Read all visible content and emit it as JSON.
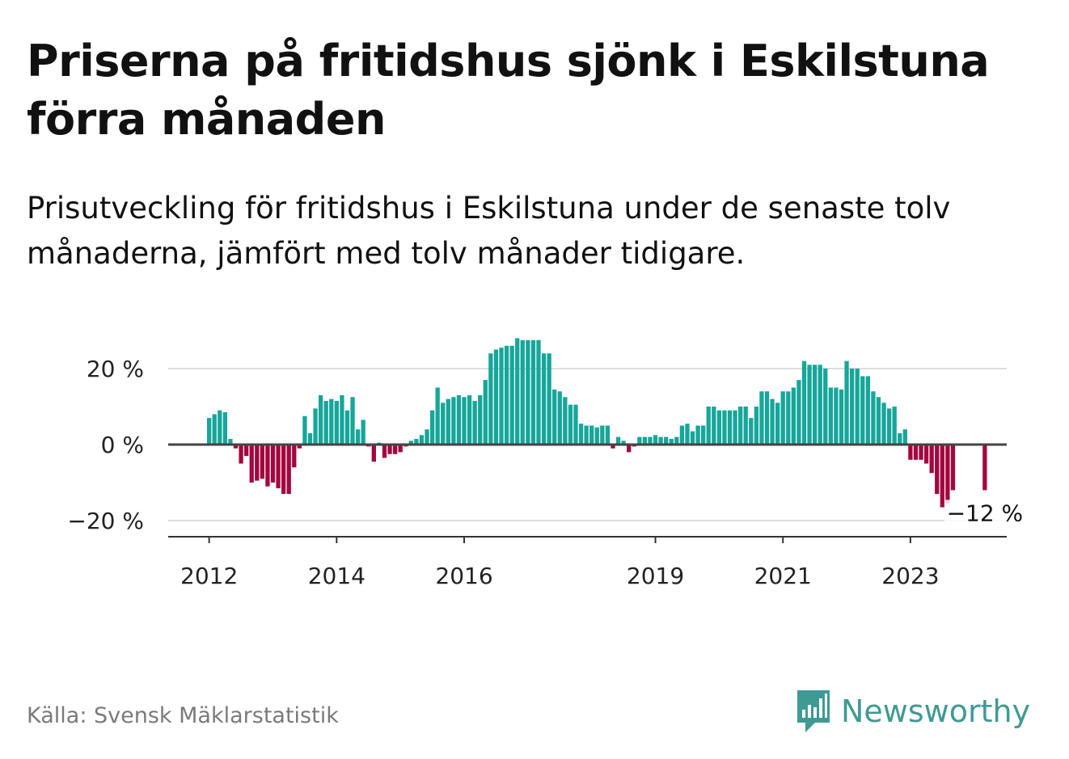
{
  "title": "Priserna på fritidshus sjönk i Eskilstuna förra månaden",
  "subtitle": "Prisutveckling för fritidshus i Eskilstuna under de senaste tolv månaderna, jämfört med tolv månader tidigare.",
  "source": "Källa: Svensk Mäklarstatistik",
  "logo_text": "Newsworthy",
  "colors": {
    "positive": "#16a69a",
    "negative": "#a3063f",
    "gridline": "#dddddd",
    "zero_line": "#444444",
    "logo": "#3f9a93"
  },
  "chart_data": {
    "type": "bar",
    "start": "2012-01",
    "values": [
      7,
      8,
      9,
      8.5,
      1.5,
      -1,
      -5,
      -3,
      -10,
      -9.5,
      -9,
      -11,
      -10,
      -11.5,
      -13,
      -13,
      -6,
      -1,
      7.5,
      3,
      9.5,
      13,
      11.5,
      12,
      11.5,
      13,
      9,
      12.5,
      4,
      6.5,
      -0.5,
      -4.5,
      0.5,
      -3.5,
      -2.5,
      -2.5,
      -2,
      -0.5,
      1,
      1.5,
      2.5,
      4,
      9,
      15,
      11,
      12,
      12.5,
      13,
      12.5,
      13,
      11.5,
      13,
      17,
      24,
      25,
      25.5,
      26,
      26,
      28,
      27.5,
      27.5,
      27.5,
      27.5,
      24,
      24,
      14.5,
      14,
      12.5,
      10.5,
      10.5,
      5.5,
      5,
      5,
      4.5,
      5,
      5,
      -1,
      2,
      1,
      -2,
      -0.5,
      2,
      2,
      2,
      2.5,
      2,
      2,
      1.5,
      2,
      5,
      5.5,
      3.5,
      5,
      5,
      10,
      10,
      9,
      9,
      9,
      9,
      10,
      10,
      7,
      10,
      14,
      14,
      12,
      11,
      14,
      14,
      15,
      17,
      22,
      21,
      21,
      21,
      20,
      15,
      15,
      14.5,
      22,
      20,
      20,
      18,
      18,
      14,
      12.5,
      11,
      9.5,
      10,
      3,
      4,
      -4,
      -4,
      -4,
      -5,
      -7.5,
      -13,
      -16.5,
      -15.5,
      -12,
      null,
      null,
      null,
      null,
      null,
      -12
    ],
    "ylim": [
      -24,
      30
    ],
    "y_ticks": [
      20,
      0,
      -20
    ],
    "y_tick_labels": [
      "20 %",
      "0 %",
      "−20 %"
    ],
    "x_ticks": [
      "2012",
      "2014",
      "2016",
      "2019",
      "2021",
      "2023"
    ],
    "annotation": {
      "label": "−12 %",
      "value": -12
    },
    "grid": true
  }
}
